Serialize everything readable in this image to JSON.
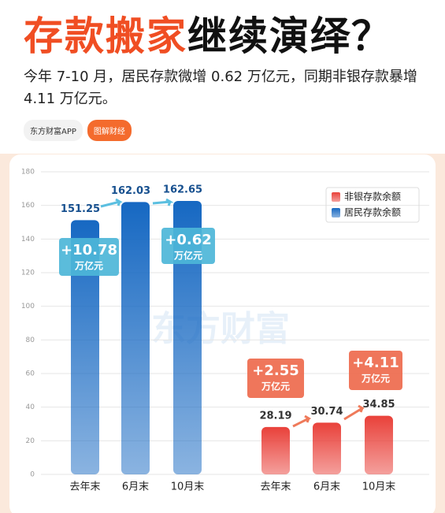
{
  "header": {
    "title_highlight": "存款搬家",
    "title_rest": "继续演绎？",
    "subtitle": "今年 7-10 月，居民存款微增 0.62 万亿元，同期非银存款暴增 4.11 万亿元。",
    "badges": [
      "东方财富APP",
      "图解财经"
    ]
  },
  "chart_data": {
    "type": "bar",
    "categories": [
      "去年末",
      "6月末",
      "10月末",
      "去年末",
      "6月末",
      "10月末"
    ],
    "series": [
      {
        "name": "居民存款余额",
        "color": "#1668c2",
        "values": [
          151.25,
          162.03,
          162.65,
          null,
          null,
          null
        ]
      },
      {
        "name": "非银存款余额",
        "color": "#e9413a",
        "values": [
          null,
          null,
          null,
          28.19,
          30.74,
          34.85
        ]
      }
    ],
    "ylim": [
      0,
      180
    ],
    "yticks": [
      0,
      20,
      40,
      60,
      80,
      100,
      120,
      140,
      160,
      180
    ],
    "grid": true,
    "legend": "top-right",
    "watermark": "东方财富",
    "annotations": [
      {
        "text": "+10.78",
        "unit": "万亿元"
      },
      {
        "text": "+0.62",
        "unit": "万亿元"
      },
      {
        "text": "+2.55",
        "unit": "万亿元"
      },
      {
        "text": "+4.11",
        "unit": "万亿元"
      }
    ]
  }
}
